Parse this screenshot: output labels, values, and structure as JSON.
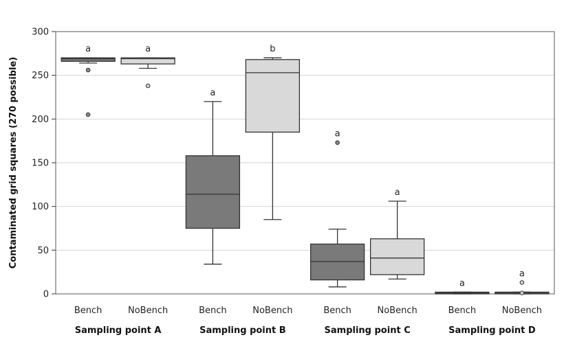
{
  "chart_data": {
    "type": "boxplot",
    "title": "",
    "ylabel": "Contaminated grid squares (270 possible)",
    "xlabel": "",
    "ylim": [
      0,
      300
    ],
    "yticks": [
      0,
      50,
      100,
      150,
      200,
      250,
      300
    ],
    "grid": true,
    "groups": [
      {
        "label": "Sampling point A",
        "boxes": [
          {
            "category": "Bench",
            "color": "#7a7a7a",
            "min": 264,
            "q1": 266,
            "median": 269,
            "q3": 270,
            "max": 270,
            "outliers": [
              256,
              205
            ],
            "sig": "a"
          },
          {
            "category": "NoBench",
            "color": "#d9d9d9",
            "min": 258,
            "q1": 263,
            "median": 269,
            "q3": 270,
            "max": 270,
            "outliers": [
              238
            ],
            "sig": "a"
          }
        ]
      },
      {
        "label": "Sampling point B",
        "boxes": [
          {
            "category": "Bench",
            "color": "#7a7a7a",
            "min": 34,
            "q1": 75,
            "median": 114,
            "q3": 158,
            "max": 220,
            "outliers": [],
            "sig": "a"
          },
          {
            "category": "NoBench",
            "color": "#d9d9d9",
            "min": 85,
            "q1": 185,
            "median": 253,
            "q3": 268,
            "max": 270,
            "outliers": [],
            "sig": "b"
          }
        ]
      },
      {
        "label": "Sampling point C",
        "boxes": [
          {
            "category": "Bench",
            "color": "#7a7a7a",
            "min": 8,
            "q1": 16,
            "median": 37,
            "q3": 57,
            "max": 74,
            "outliers": [
              173
            ],
            "sig": "a"
          },
          {
            "category": "NoBench",
            "color": "#d9d9d9",
            "min": 17,
            "q1": 22,
            "median": 41,
            "q3": 63,
            "max": 106,
            "outliers": [],
            "sig": "a"
          }
        ]
      },
      {
        "label": "Sampling point D",
        "boxes": [
          {
            "category": "Bench",
            "color": "#7a7a7a",
            "min": 0,
            "q1": 0,
            "median": 1,
            "q3": 2,
            "max": 2,
            "outliers": [],
            "sig": "a"
          },
          {
            "category": "NoBench",
            "color": "#d9d9d9",
            "min": 0,
            "q1": 0,
            "median": 1,
            "q3": 2,
            "max": 2,
            "outliers": [
              13,
              1
            ],
            "sig": "a"
          }
        ]
      }
    ]
  }
}
